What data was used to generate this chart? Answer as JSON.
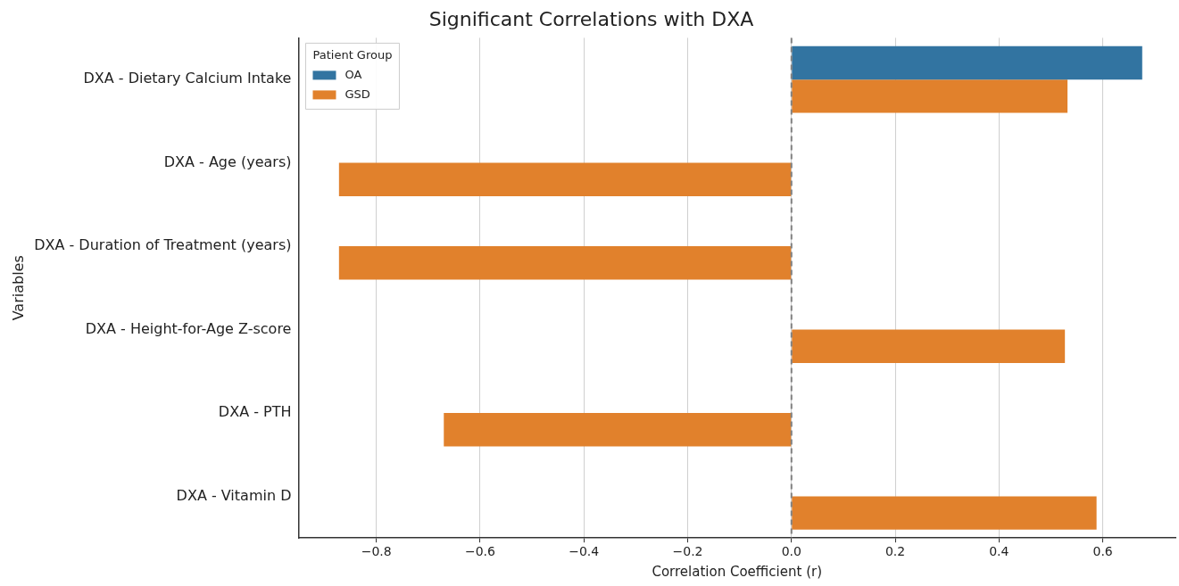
{
  "chart_data": {
    "type": "bar",
    "orientation": "horizontal",
    "title": "Significant Correlations with DXA",
    "xlabel": "Correlation Coefficient (r)",
    "ylabel": "Variables",
    "legend_title": "Patient Group",
    "categories": [
      "DXA - Dietary Calcium Intake",
      "DXA - Age (years)",
      "DXA - Duration of Treatment (years)",
      "DXA - Height-for-Age Z-score",
      "DXA - PTH",
      "DXA - Vitamin D"
    ],
    "series": [
      {
        "name": "OA",
        "color": "#3274a1",
        "values": [
          0.676,
          null,
          null,
          null,
          null,
          null
        ]
      },
      {
        "name": "GSD",
        "color": "#e1812c",
        "values": [
          0.532,
          -0.872,
          -0.872,
          0.527,
          -0.67,
          0.588
        ]
      }
    ],
    "xlim": [
      -0.95,
      0.74
    ],
    "xticks": [
      {
        "value": -0.8,
        "label": "−0.8"
      },
      {
        "value": -0.6,
        "label": "−0.6"
      },
      {
        "value": -0.4,
        "label": "−0.4"
      },
      {
        "value": -0.2,
        "label": "−0.2"
      },
      {
        "value": 0,
        "label": "0.0"
      },
      {
        "value": 0.2,
        "label": "0.2"
      },
      {
        "value": 0.4,
        "label": "0.4"
      },
      {
        "value": 0.6,
        "label": "0.6"
      }
    ],
    "ref_lines": [
      {
        "axis": "x",
        "value": 0,
        "color": "#808080",
        "line_style": "dashed"
      }
    ],
    "grid": "x",
    "legend": "top left"
  }
}
